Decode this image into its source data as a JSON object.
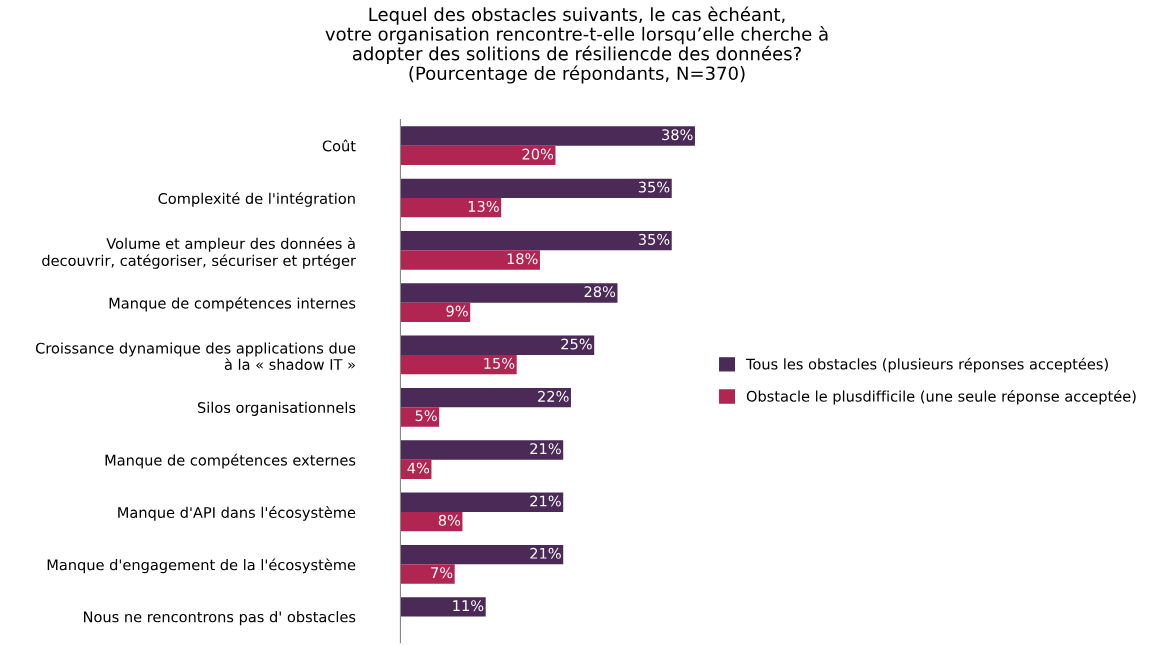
{
  "chart_data": {
    "type": "bar",
    "orientation": "horizontal",
    "title": "Lequel des obstacles suivants, le cas èchéant,\nvotre organisation rencontre-t-elle lorsqu’elle cherche à\nadopter des solitions de résiliencde des données?\n(Pourcentage de répondants, N=370)",
    "categories": [
      "Coût",
      "Complexité de l'intégration",
      "Volume et ampleur des données à\ndecouvrir, catégoriser, sécuriser et prtéger",
      "Manque de compétences internes",
      "Croissance dynamique des applications due\nà la « shadow IT »",
      "Silos organisationnels",
      "Manque de compétences externes",
      "Manque d'API dans l'écosystème",
      "Manque d'engagement de la l'écosystème",
      "Nous ne rencontrons pas d' obstacles"
    ],
    "series": [
      {
        "name": "Tous les obstacles (plusieurs réponses acceptées)",
        "color": "#4b2a58",
        "values": [
          38,
          35,
          35,
          28,
          25,
          22,
          21,
          21,
          21,
          11
        ],
        "value_labels": [
          "38%",
          "35%",
          "35%",
          "28%",
          "25%",
          "22%",
          "21%",
          "21%",
          "21%",
          "11%"
        ]
      },
      {
        "name": "Obstacle le plusdifficile (une seule réponse acceptée)",
        "color": "#b02552",
        "values": [
          20,
          13,
          18,
          9,
          15,
          5,
          4,
          8,
          7,
          null
        ],
        "value_labels": [
          "20%",
          "13%",
          "18%",
          "9%",
          "15%",
          "5%",
          "4%",
          "8%",
          "7%",
          null
        ]
      }
    ],
    "legend": "right",
    "grid": false
  }
}
